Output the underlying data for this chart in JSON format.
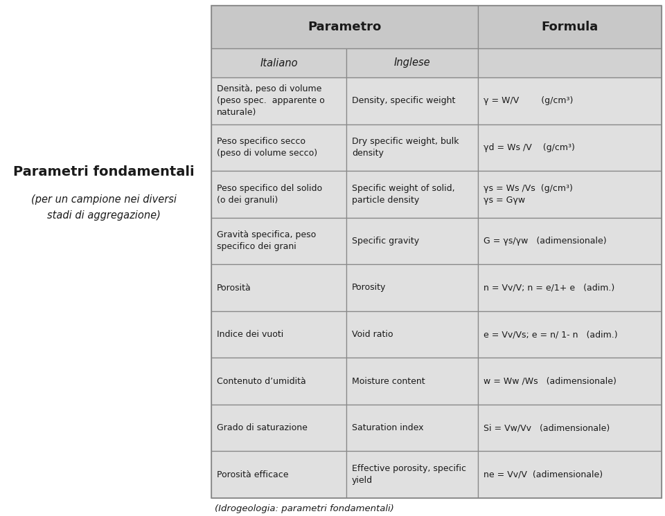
{
  "title_left_bold": "Parametri fondamentali",
  "title_left_italic": "(per un campione nei diversi\nstadi di aggregazione)",
  "col_header1": "Parametro",
  "col_header2": "Formula",
  "subheader1": "Italiano",
  "subheader2": "Inglese",
  "footer": "(Idrogeologia: parametri fondamentali)",
  "rows": [
    {
      "italiano": "Densità, peso di volume\n(peso spec.  apparente o\nnaturale)",
      "inglese": "Density, specific weight",
      "formula": "γ = W/V        (g/cm³)"
    },
    {
      "italiano": "Peso specifico secco\n(peso di volume secco)",
      "inglese": "Dry specific weight, bulk\ndensity",
      "formula": "γd = Ws /V    (g/cm³)"
    },
    {
      "italiano": "Peso specifico del solido\n(o dei granuli)",
      "inglese": "Specific weight of solid,\nparticle density",
      "formula": "γs = Ws /Vs  (g/cm³)\nγs = Gγw"
    },
    {
      "italiano": "Gravità specifica, peso\nspecifico dei grani",
      "inglese": "Specific gravity",
      "formula": "G = γs/γw   (adimensionale)"
    },
    {
      "italiano": "Porosità",
      "inglese": "Porosity",
      "formula": "n = Vv/V; n = e/1+ e   (adim.)"
    },
    {
      "italiano": "Indice dei vuoti",
      "inglese": "Void ratio",
      "formula": "e = Vv/Vs; e = n/ 1- n   (adim.)"
    },
    {
      "italiano": "Contenuto d’umidità",
      "inglese": "Moisture content",
      "formula": "w = Ww /Ws   (adimensionale)"
    },
    {
      "italiano": "Grado di saturazione",
      "inglese": "Saturation index",
      "formula": "Si = Vw/Vv   (adimensionale)"
    },
    {
      "italiano": "Porosità efficace",
      "inglese": "Effective porosity, specific\nyield",
      "formula": "ne = Vv/V  (adimensionale)"
    }
  ],
  "bg_color": "#ffffff",
  "header_bg": "#c8c8c8",
  "subheader_bg": "#d2d2d2",
  "row_bg": "#e0e0e0",
  "line_color": "#888888",
  "text_color": "#1a1a1a"
}
